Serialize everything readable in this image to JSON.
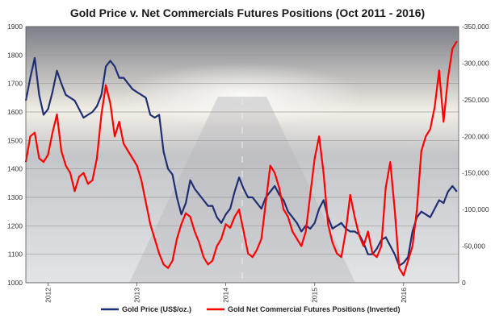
{
  "chart_data": {
    "type": "line",
    "title": "Gold Price v. Net Commercials Futures Positions (Oct 2011 - 2016)",
    "x_tick_labels": [
      "2012",
      "2013",
      "2014",
      "2015",
      "2016"
    ],
    "x_tick_years": [
      2012,
      2013,
      2014,
      2015,
      2016
    ],
    "x_range": [
      2011.75,
      2016.62
    ],
    "y_left": {
      "ylim": [
        1000,
        1900
      ],
      "ticks": [
        1000,
        1100,
        1200,
        1300,
        1400,
        1500,
        1600,
        1700,
        1800,
        1900
      ]
    },
    "y_right": {
      "ylim": [
        0,
        -350000
      ],
      "ticks": [
        0,
        -50000,
        -100000,
        -150000,
        -200000,
        -250000,
        -300000,
        -350000
      ],
      "tick_labels": [
        "0",
        "-50,000",
        "-100,000",
        "-150,000",
        "-200,000",
        "-250,000",
        "-300,000",
        "-350,000"
      ],
      "inverted": true
    },
    "series": [
      {
        "name": "Gold Price (US$/oz.)",
        "axis": "left",
        "color": "#1f2f73",
        "x": [
          2011.75,
          2011.8,
          2011.85,
          2011.9,
          2011.95,
          2012.0,
          2012.05,
          2012.1,
          2012.15,
          2012.2,
          2012.25,
          2012.3,
          2012.35,
          2012.4,
          2012.45,
          2012.5,
          2012.55,
          2012.6,
          2012.65,
          2012.7,
          2012.75,
          2012.8,
          2012.85,
          2012.9,
          2012.95,
          2013.0,
          2013.05,
          2013.1,
          2013.15,
          2013.2,
          2013.25,
          2013.3,
          2013.35,
          2013.4,
          2013.45,
          2013.5,
          2013.55,
          2013.6,
          2013.65,
          2013.7,
          2013.75,
          2013.8,
          2013.85,
          2013.9,
          2013.95,
          2014.0,
          2014.05,
          2014.1,
          2014.15,
          2014.2,
          2014.25,
          2014.3,
          2014.35,
          2014.4,
          2014.45,
          2014.5,
          2014.55,
          2014.6,
          2014.65,
          2014.7,
          2014.75,
          2014.8,
          2014.85,
          2014.9,
          2014.95,
          2015.0,
          2015.05,
          2015.1,
          2015.15,
          2015.2,
          2015.25,
          2015.3,
          2015.35,
          2015.4,
          2015.45,
          2015.5,
          2015.55,
          2015.6,
          2015.65,
          2015.7,
          2015.75,
          2015.8,
          2015.85,
          2015.9,
          2015.95,
          2016.0,
          2016.05,
          2016.1,
          2016.15,
          2016.2,
          2016.25,
          2016.3,
          2016.35,
          2016.4,
          2016.45,
          2016.5,
          2016.55,
          2016.6
        ],
        "values": [
          1640,
          1720,
          1790,
          1660,
          1590,
          1610,
          1670,
          1745,
          1700,
          1660,
          1650,
          1640,
          1610,
          1580,
          1590,
          1600,
          1620,
          1660,
          1760,
          1780,
          1760,
          1720,
          1720,
          1700,
          1680,
          1670,
          1660,
          1650,
          1590,
          1580,
          1590,
          1460,
          1400,
          1380,
          1300,
          1240,
          1280,
          1360,
          1330,
          1310,
          1290,
          1270,
          1270,
          1230,
          1210,
          1240,
          1260,
          1320,
          1370,
          1330,
          1300,
          1300,
          1280,
          1260,
          1300,
          1320,
          1340,
          1310,
          1290,
          1250,
          1230,
          1210,
          1180,
          1200,
          1190,
          1210,
          1260,
          1290,
          1230,
          1190,
          1200,
          1210,
          1190,
          1180,
          1180,
          1170,
          1140,
          1100,
          1100,
          1120,
          1150,
          1160,
          1130,
          1100,
          1060,
          1070,
          1090,
          1180,
          1230,
          1250,
          1240,
          1230,
          1260,
          1290,
          1280,
          1320,
          1340,
          1320
        ]
      },
      {
        "name": "Gold Net Commercial Futures Positions (Inverted)",
        "axis": "right",
        "color": "#ff0000",
        "x": [
          2011.75,
          2011.8,
          2011.85,
          2011.9,
          2011.95,
          2012.0,
          2012.05,
          2012.1,
          2012.15,
          2012.2,
          2012.25,
          2012.3,
          2012.35,
          2012.4,
          2012.45,
          2012.5,
          2012.55,
          2012.6,
          2012.65,
          2012.7,
          2012.75,
          2012.8,
          2012.85,
          2012.9,
          2012.95,
          2013.0,
          2013.05,
          2013.1,
          2013.15,
          2013.2,
          2013.25,
          2013.3,
          2013.35,
          2013.4,
          2013.45,
          2013.5,
          2013.55,
          2013.6,
          2013.65,
          2013.7,
          2013.75,
          2013.8,
          2013.85,
          2013.9,
          2013.95,
          2014.0,
          2014.05,
          2014.1,
          2014.15,
          2014.2,
          2014.25,
          2014.3,
          2014.35,
          2014.4,
          2014.45,
          2014.5,
          2014.55,
          2014.6,
          2014.65,
          2014.7,
          2014.75,
          2014.8,
          2014.85,
          2014.9,
          2014.95,
          2015.0,
          2015.05,
          2015.1,
          2015.15,
          2015.2,
          2015.25,
          2015.3,
          2015.35,
          2015.4,
          2015.45,
          2015.5,
          2015.55,
          2015.6,
          2015.65,
          2015.7,
          2015.75,
          2015.8,
          2015.85,
          2015.9,
          2015.95,
          2016.0,
          2016.05,
          2016.1,
          2016.15,
          2016.2,
          2016.25,
          2016.3,
          2016.35,
          2016.4,
          2016.45,
          2016.5,
          2016.55,
          2016.6
        ],
        "values": [
          -165000,
          -200000,
          -205000,
          -170000,
          -165000,
          -175000,
          -205000,
          -230000,
          -180000,
          -160000,
          -150000,
          -125000,
          -145000,
          -150000,
          -135000,
          -140000,
          -170000,
          -230000,
          -270000,
          -245000,
          -200000,
          -220000,
          -190000,
          -180000,
          -170000,
          -160000,
          -140000,
          -110000,
          -80000,
          -60000,
          -40000,
          -25000,
          -20000,
          -30000,
          -60000,
          -80000,
          -95000,
          -90000,
          -70000,
          -55000,
          -35000,
          -25000,
          -30000,
          -50000,
          -60000,
          -80000,
          -75000,
          -90000,
          -100000,
          -70000,
          -40000,
          -35000,
          -45000,
          -60000,
          -110000,
          -160000,
          -150000,
          -130000,
          -100000,
          -90000,
          -70000,
          -60000,
          -50000,
          -70000,
          -120000,
          -170000,
          -200000,
          -150000,
          -80000,
          -55000,
          -40000,
          -35000,
          -70000,
          -120000,
          -90000,
          -65000,
          -50000,
          -70000,
          -40000,
          -35000,
          -50000,
          -130000,
          -165000,
          -100000,
          -20000,
          -10000,
          -30000,
          -50000,
          -100000,
          -180000,
          -200000,
          -210000,
          -240000,
          -290000,
          -220000,
          -280000,
          -320000,
          -330000
        ]
      }
    ],
    "legend": {
      "placement": "bottom"
    },
    "grid": true
  },
  "colors": {
    "gold_line": "#1f2f73",
    "net_line": "#ff0000",
    "plot_background_top": "#8a8c93",
    "plot_background_bottom": "#dedfe2",
    "grid": "#9a9a9a"
  }
}
